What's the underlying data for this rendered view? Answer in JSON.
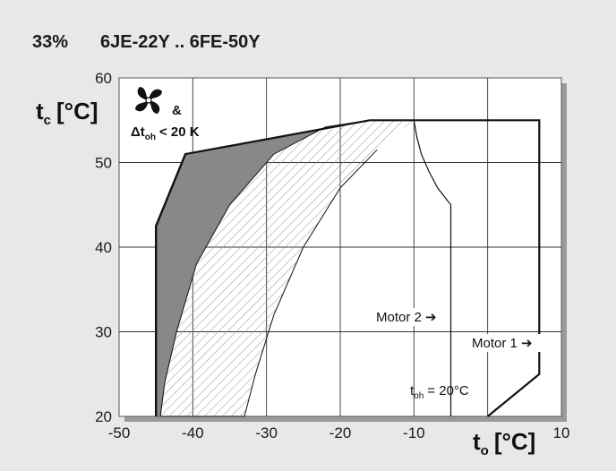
{
  "header": {
    "percent": "33%",
    "models": "6JE-22Y .. 6FE-50Y"
  },
  "chart_data": {
    "type": "area",
    "xlabel_main": "t",
    "xlabel_sub": "o",
    "xlabel_unit": "[°C]",
    "ylabel_main": "t",
    "ylabel_sub": "c",
    "ylabel_unit": "[°C]",
    "xlim": [
      -50,
      10
    ],
    "ylim": [
      20,
      60
    ],
    "xticks": [
      -50,
      -40,
      -30,
      -20,
      -10,
      10
    ],
    "yticks": [
      20,
      30,
      40,
      50,
      60
    ],
    "grid": true,
    "annotations": {
      "fan_note_amp": "&",
      "fan_note_delta": "Δt",
      "fan_note_sub": "oh",
      "fan_note_rest": "< 20 K",
      "motor2": "Motor 2",
      "motor1": "Motor 1",
      "toh_main": "t",
      "toh_sub": "oh",
      "toh_rest": "= 20°C",
      "arrow": "➔"
    },
    "envelope_outline": [
      [
        -45,
        20
      ],
      [
        -45,
        42.5
      ],
      [
        -41,
        51
      ],
      [
        -16,
        55
      ],
      [
        7,
        55
      ],
      [
        7,
        25
      ],
      [
        0,
        20
      ]
    ],
    "dark_region": [
      [
        -45,
        20
      ],
      [
        -45,
        42.5
      ],
      [
        -41,
        51
      ],
      [
        -16,
        55
      ],
      [
        -22,
        54.2
      ],
      [
        -29,
        51
      ],
      [
        -35,
        45
      ],
      [
        -39.5,
        38
      ],
      [
        -42.2,
        30
      ],
      [
        -43.8,
        24
      ],
      [
        -44.4,
        20
      ]
    ],
    "hatched_region": [
      [
        -10,
        55
      ],
      [
        -16,
        55
      ],
      [
        -22,
        54.2
      ],
      [
        -29,
        51
      ],
      [
        -35,
        45
      ],
      [
        -39.5,
        38
      ],
      [
        -42.2,
        30
      ],
      [
        -43.8,
        24
      ],
      [
        -44.4,
        20
      ],
      [
        -33,
        20
      ],
      [
        -31.5,
        25
      ],
      [
        -29,
        32
      ],
      [
        -25,
        40
      ],
      [
        -20,
        47
      ],
      [
        -15,
        51.5
      ]
    ],
    "motor2_line": [
      [
        -10,
        55
      ],
      [
        -9.6,
        53
      ],
      [
        -9,
        51
      ],
      [
        -8,
        49
      ],
      [
        -6.8,
        47
      ],
      [
        -5,
        45
      ],
      [
        -5,
        20
      ]
    ],
    "motor1_line": [
      [
        7,
        25
      ],
      [
        7,
        55
      ]
    ],
    "fan_line": [
      [
        -41,
        51
      ],
      [
        -45,
        42.5
      ],
      [
        -45,
        20
      ]
    ],
    "colors": {
      "background": "#e8e8e8",
      "plot_area": "#ffffff",
      "dark_region": "#888888",
      "hatch": "#999999",
      "line": "#111111",
      "shadow": "#9a9a9a"
    }
  }
}
